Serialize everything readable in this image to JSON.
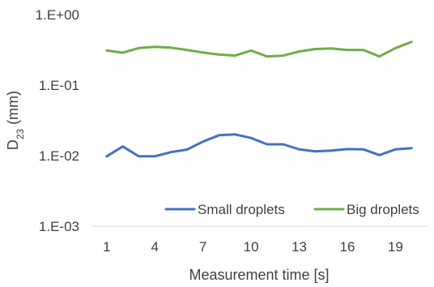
{
  "chart_data": {
    "type": "line",
    "title": "",
    "xlabel": "Measurement time [s]",
    "ylabel": {
      "main": "D",
      "subscript": "23",
      "unit": " (mm)"
    },
    "y_scale": "log",
    "ylim": [
      0.001,
      1
    ],
    "xlim": [
      0,
      21
    ],
    "x_ticks": [
      1,
      4,
      7,
      10,
      13,
      16,
      19
    ],
    "y_ticks": [
      {
        "value": 1,
        "label": "1.E+00"
      },
      {
        "value": 0.1,
        "label": "1.E-01"
      },
      {
        "value": 0.01,
        "label": "1.E-02"
      },
      {
        "value": 0.001,
        "label": "1.E-03"
      }
    ],
    "grid": false,
    "legend_position": "bottom-right",
    "x": [
      1,
      2,
      3,
      4,
      5,
      6,
      7,
      8,
      9,
      10,
      11,
      12,
      13,
      14,
      15,
      16,
      17,
      18,
      19,
      20
    ],
    "series": [
      {
        "name": "Small droplets",
        "color": "#4472C4",
        "values": [
          0.0098,
          0.0135,
          0.0098,
          0.0098,
          0.0112,
          0.0122,
          0.0158,
          0.0195,
          0.02,
          0.0178,
          0.0145,
          0.0145,
          0.0123,
          0.0115,
          0.0118,
          0.0124,
          0.0123,
          0.0102,
          0.0123,
          0.0128
        ]
      },
      {
        "name": "Big droplets",
        "color": "#70AD47",
        "values": [
          0.31,
          0.288,
          0.335,
          0.35,
          0.34,
          0.315,
          0.29,
          0.272,
          0.262,
          0.31,
          0.255,
          0.262,
          0.3,
          0.325,
          0.332,
          0.315,
          0.315,
          0.255,
          0.335,
          0.41
        ]
      }
    ]
  }
}
